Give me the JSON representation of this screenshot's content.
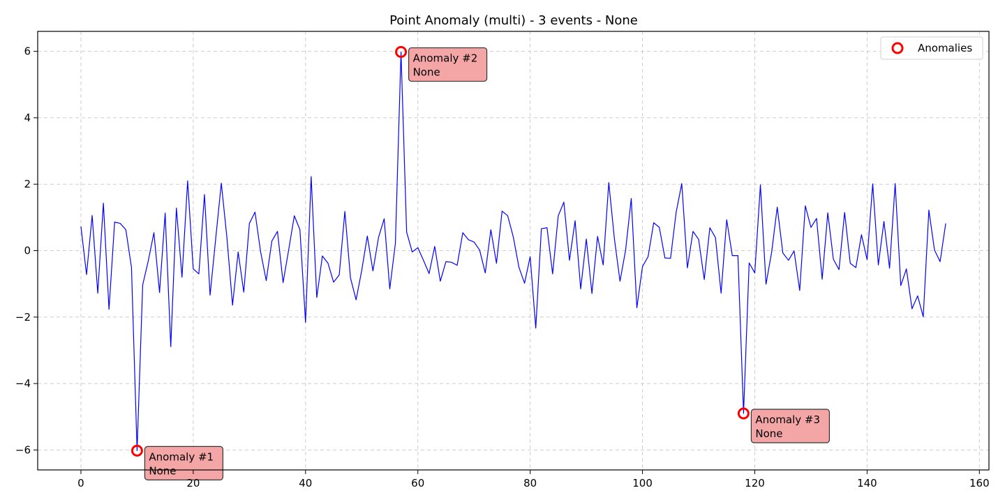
{
  "chart_data": {
    "type": "line",
    "title": "Point Anomaly (multi) - 3 events - None",
    "xlabel": "",
    "ylabel": "",
    "xlim": [
      -7.7,
      161.7
    ],
    "ylim": [
      -6.6,
      6.6
    ],
    "xticks": [
      0,
      20,
      40,
      60,
      80,
      100,
      120,
      140,
      160
    ],
    "yticks": [
      -6,
      -4,
      -2,
      0,
      2,
      4,
      6
    ],
    "xtick_labels": [
      "0",
      "20",
      "40",
      "60",
      "80",
      "100",
      "120",
      "140",
      "160"
    ],
    "ytick_labels": [
      "−6",
      "−4",
      "−2",
      "0",
      "2",
      "4",
      "6"
    ],
    "grid": true,
    "legend": {
      "position": "top-right",
      "entries": [
        "Anomalies"
      ]
    },
    "colors": {
      "line": "#0000ff",
      "anomaly_marker": "#ff0000",
      "annotation_fill": "#f4a6a6",
      "grid": "#cccccc"
    },
    "series": [
      {
        "x_start": 0,
        "x_step": 1,
        "values": [
          0.73,
          -0.72,
          1.06,
          -1.28,
          1.43,
          -1.77,
          0.86,
          0.82,
          0.63,
          -0.5,
          -6.02,
          -1.03,
          -0.3,
          0.54,
          -1.26,
          1.13,
          -2.89,
          1.28,
          -0.8,
          2.1,
          -0.55,
          -0.7,
          1.69,
          -1.34,
          0.36,
          2.03,
          0.39,
          -1.64,
          -0.04,
          -1.25,
          0.82,
          1.16,
          -0.04,
          -0.9,
          0.29,
          0.58,
          -0.96,
          0.03,
          1.05,
          0.63,
          -2.16,
          2.23,
          -1.41,
          -0.16,
          -0.38,
          -0.95,
          -0.73,
          1.18,
          -0.82,
          -1.48,
          -0.6,
          0.44,
          -0.61,
          0.4,
          0.96,
          -1.15,
          0.22,
          5.98,
          0.56,
          -0.04,
          0.09,
          -0.29,
          -0.69,
          0.13,
          -0.92,
          -0.33,
          -0.35,
          -0.44,
          0.54,
          0.33,
          0.26,
          0.02,
          -0.67,
          0.63,
          -0.38,
          1.19,
          1.05,
          0.41,
          -0.5,
          -0.98,
          -0.18,
          -2.33,
          0.66,
          0.69,
          -0.7,
          1.05,
          1.46,
          -0.29,
          0.9,
          -1.15,
          0.35,
          -1.29,
          0.43,
          -0.43,
          2.05,
          0.36,
          -0.92,
          0.02,
          1.57,
          -1.72,
          -0.48,
          -0.18,
          0.84,
          0.7,
          -0.22,
          -0.23,
          1.16,
          2.02,
          -0.52,
          0.58,
          0.34,
          -0.87,
          0.69,
          0.39,
          -1.28,
          0.93,
          -0.15,
          -0.15,
          -4.9,
          -0.37,
          -0.67,
          1.98,
          -1.01,
          -0.05,
          1.31,
          -0.07,
          -0.29,
          -0.01,
          -1.2,
          1.35,
          0.7,
          0.97,
          -0.86,
          1.14,
          -0.26,
          -0.57,
          1.15,
          -0.38,
          -0.51,
          0.48,
          -0.27,
          2.01,
          -0.43,
          0.88,
          -0.53,
          2.02,
          -1.05,
          -0.55,
          -1.75,
          -1.36,
          -1.99,
          1.22,
          0.02,
          -0.33,
          0.82
        ]
      }
    ],
    "anomalies": [
      {
        "label": "Anomaly #1",
        "detail": "None",
        "x": 10,
        "y": -6.02
      },
      {
        "label": "Anomaly #2",
        "detail": "None",
        "x": 57,
        "y": 5.98
      },
      {
        "label": "Anomaly #3",
        "detail": "None",
        "x": 118,
        "y": -4.9
      }
    ]
  }
}
